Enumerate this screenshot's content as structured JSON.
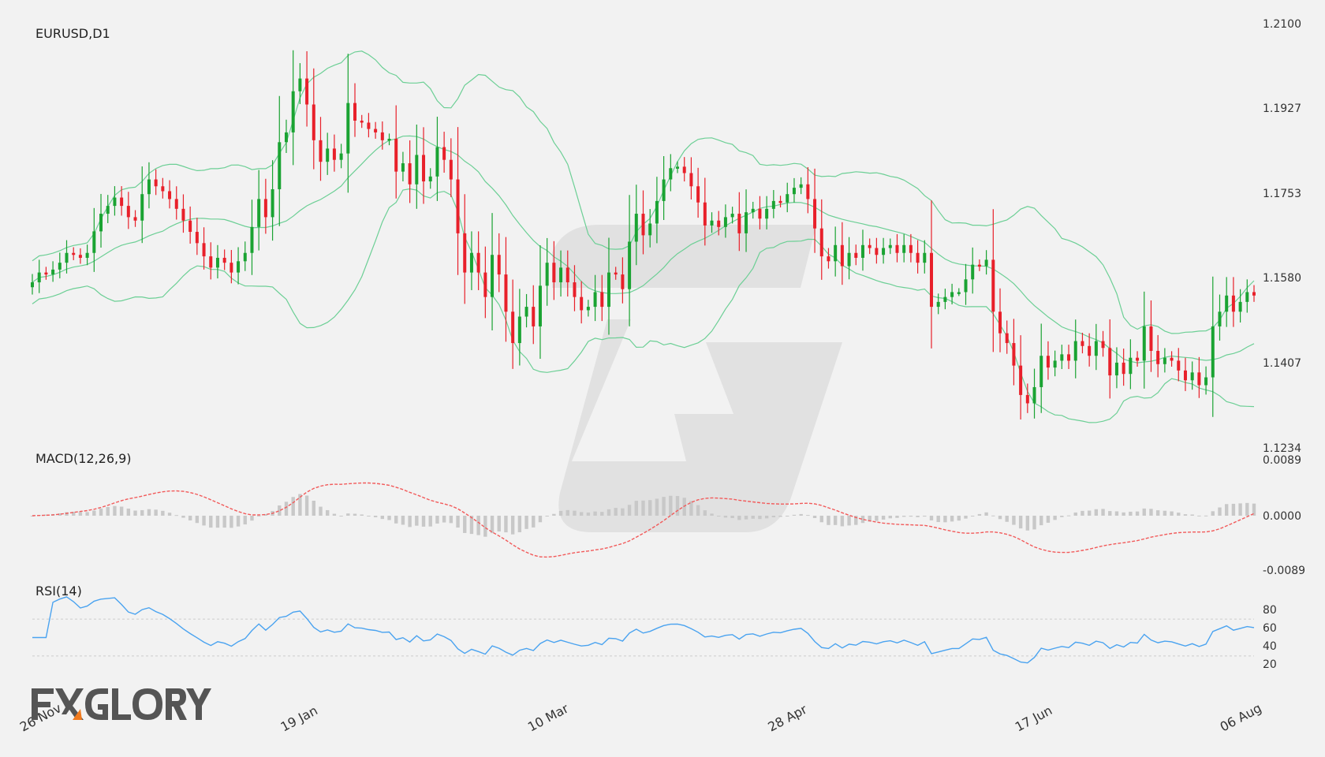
{
  "chart_data": {
    "type": "candlestick",
    "colors": {
      "up": "#1aa332",
      "down": "#e8202a",
      "bollinger": "#6ccf95",
      "macd_signal": "#f25a5a",
      "macd_hist": "#c8c8c8",
      "rsi": "#4aa3f0",
      "rsi_levels": "#cccccc"
    },
    "price_panel": {
      "title": "EURUSD,D1",
      "y_ticks": [
        "1.2100",
        "1.1927",
        "1.1753",
        "1.1580",
        "1.1407",
        "1.1234"
      ],
      "ylim": [
        1.1234,
        1.21
      ]
    },
    "macd_panel": {
      "title": "MACD(12,26,9)",
      "y_ticks": [
        "0.0089",
        "0.0000",
        "-0.0089"
      ],
      "ylim": [
        -0.0089,
        0.0089
      ]
    },
    "rsi_panel": {
      "title": "RSI(14)",
      "y_ticks": [
        "80",
        "60",
        "40",
        "20"
      ],
      "levels": [
        70,
        30
      ],
      "ylim": [
        0,
        100
      ]
    },
    "x_labels": [
      "26 Nov",
      "19 Jan",
      "10 Mar",
      "28 Apr",
      "17 Jun",
      "06 Aug"
    ],
    "x_label_index": [
      0,
      38,
      74,
      109,
      145,
      179
    ],
    "closes": [
      1.1572,
      1.1592,
      1.1588,
      1.1598,
      1.1612,
      1.1632,
      1.1628,
      1.1622,
      1.1632,
      1.1676,
      1.1712,
      1.1728,
      1.1745,
      1.1728,
      1.1705,
      1.1698,
      1.1752,
      1.1782,
      1.1768,
      1.1758,
      1.1742,
      1.1722,
      1.1698,
      1.1675,
      1.1652,
      1.1625,
      1.1602,
      1.1622,
      1.1612,
      1.1592,
      1.1615,
      1.1632,
      1.1685,
      1.1742,
      1.1705,
      1.1762,
      1.1858,
      1.1878,
      1.1962,
      1.1988,
      1.1935,
      1.1862,
      1.1818,
      1.1845,
      1.1822,
      1.1835,
      1.1938,
      1.1902,
      1.1898,
      1.1885,
      1.1878,
      1.1862,
      1.1865,
      1.1798,
      1.1815,
      1.1772,
      1.1832,
      1.1778,
      1.1788,
      1.1848,
      1.1822,
      1.1782,
      1.1672,
      1.1592,
      1.1632,
      1.1592,
      1.1542,
      1.1628,
      1.1588,
      1.1512,
      1.1448,
      1.1502,
      1.1522,
      1.1482,
      1.1565,
      1.1612,
      1.1572,
      1.1602,
      1.1572,
      1.1542,
      1.1515,
      1.1522,
      1.1552,
      1.1522,
      1.1592,
      1.1588,
      1.1558,
      1.1655,
      1.1712,
      1.1668,
      1.1692,
      1.1738,
      1.1782,
      1.1805,
      1.1808,
      1.1795,
      1.1768,
      1.1735,
      1.1688,
      1.1698,
      1.1685,
      1.1705,
      1.1712,
      1.1672,
      1.1715,
      1.1722,
      1.1702,
      1.1722,
      1.1738,
      1.1735,
      1.1752,
      1.1765,
      1.1772,
      1.1742,
      1.1682,
      1.1625,
      1.1615,
      1.1648,
      1.1605,
      1.1632,
      1.1622,
      1.1648,
      1.1642,
      1.1628,
      1.1642,
      1.1648,
      1.1632,
      1.1648,
      1.1632,
      1.1612,
      1.1632,
      1.1522,
      1.1532,
      1.1542,
      1.1552,
      1.1552,
      1.1578,
      1.1608,
      1.1605,
      1.1618,
      1.1512,
      1.1468,
      1.1448,
      1.1402,
      1.1342,
      1.1325,
      1.1358,
      1.1422,
      1.1398,
      1.1412,
      1.1425,
      1.1412,
      1.1452,
      1.1442,
      1.1422,
      1.1452,
      1.1438,
      1.1382,
      1.1408,
      1.1385,
      1.1418,
      1.1412,
      1.1482,
      1.1432,
      1.1405,
      1.1418,
      1.1412,
      1.1392,
      1.1372,
      1.1388,
      1.1362,
      1.1378,
      1.1482,
      1.1512,
      1.1545,
      1.1512,
      1.1532,
      1.1552,
      1.1545
    ]
  }
}
